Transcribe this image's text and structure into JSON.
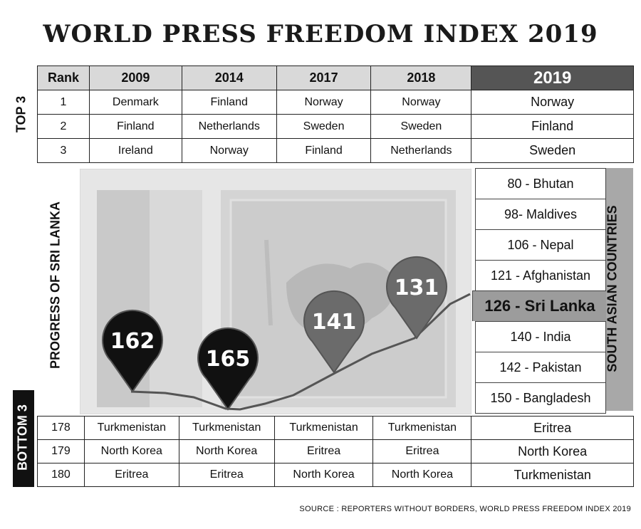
{
  "title": "WORLD PRESS FREEDOM INDEX 2019",
  "labels": {
    "top3": "TOP 3",
    "progress": "PROGRESS OF SRI LANKA",
    "bottom3": "BOTTOM 3",
    "south_asian": "SOUTH ASIAN COUNTRIES"
  },
  "top_table": {
    "headers": [
      "Rank",
      "2009",
      "2014",
      "2017",
      "2018",
      "2019"
    ],
    "rows": [
      [
        "1",
        "Denmark",
        "Finland",
        "Norway",
        "Norway",
        "Norway"
      ],
      [
        "2",
        "Finland",
        "Netherlands",
        "Sweden",
        "Sweden",
        "Finland"
      ],
      [
        "3",
        "Ireland",
        "Norway",
        "Finland",
        "Netherlands",
        "Sweden"
      ]
    ]
  },
  "sri_lanka_progress": [
    {
      "rank": "162",
      "shade": "#111111"
    },
    {
      "rank": "165",
      "shade": "#111111"
    },
    {
      "rank": "141",
      "shade": "#6b6b6b"
    },
    {
      "rank": "131",
      "shade": "#6b6b6b"
    }
  ],
  "south_asian": [
    "80 - Bhutan",
    "98- Maldives",
    "106 - Nepal",
    "121 - Afghanistan",
    "126 - Sri Lanka",
    "140 - India",
    "142 - Pakistan",
    "150 - Bangladesh"
  ],
  "bottom_table": {
    "rows": [
      [
        "178",
        "Turkmenistan",
        "Turkmenistan",
        "Turkmenistan",
        "Turkmenistan",
        "Eritrea"
      ],
      [
        "179",
        "North Korea",
        "North Korea",
        "Eritrea",
        "Eritrea",
        "North Korea"
      ],
      [
        "180",
        "Eritrea",
        "Eritrea",
        "North Korea",
        "North Korea",
        "Turkmenistan"
      ]
    ]
  },
  "source": "SOURCE : REPORTERS WITHOUT BORDERS, WORLD PRESS FREEDOM INDEX 2019",
  "colors": {
    "highlight_dark": "#555555",
    "highlight_light": "#9c9c9c",
    "panel_gray": "#a8a8a8"
  }
}
